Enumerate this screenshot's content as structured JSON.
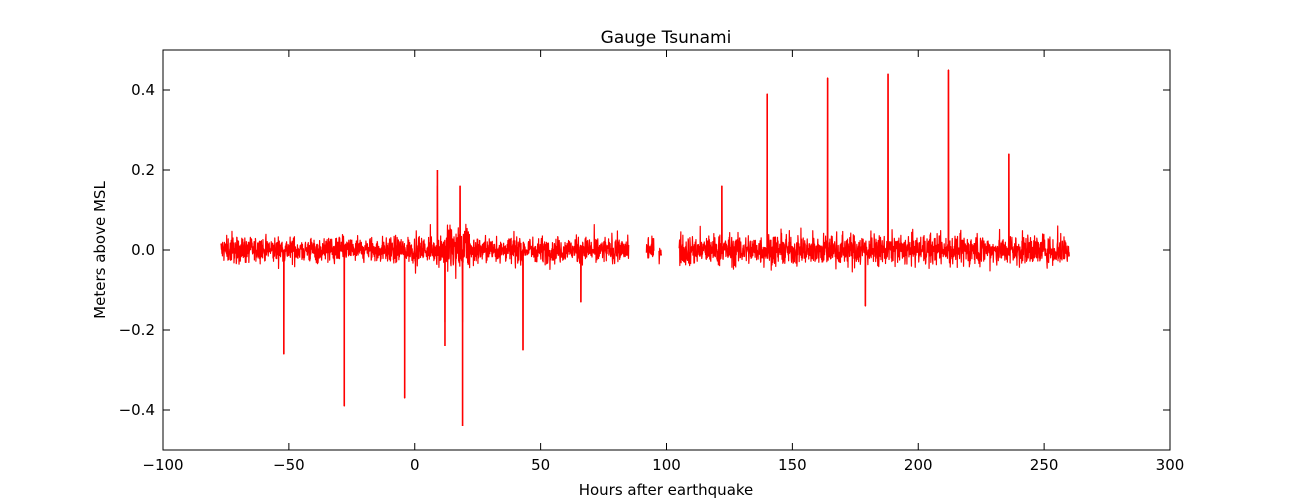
{
  "chart_data": {
    "type": "line",
    "title": "Gauge Tsunami",
    "xlabel": "Hours after earthquake",
    "ylabel": "Meters above MSL",
    "xlim": [
      -100,
      300
    ],
    "ylim": [
      -0.5,
      0.5
    ],
    "xticks": [
      -100,
      -50,
      0,
      50,
      100,
      150,
      200,
      250,
      300
    ],
    "xtick_labels": [
      "−100",
      "−50",
      "0",
      "50",
      "100",
      "150",
      "200",
      "250",
      "300"
    ],
    "yticks": [
      -0.4,
      -0.2,
      0.0,
      0.2,
      0.4
    ],
    "ytick_labels": [
      "−0.4",
      "−0.2",
      "0.0",
      "0.2",
      "0.4"
    ],
    "grid": false,
    "legend": "none",
    "series": [
      {
        "color": "#ff0000",
        "segments": [
          {
            "x_range": [
              -77,
              85
            ],
            "baseline_amplitude": 0.05
          },
          {
            "x_range": [
              92,
              95
            ],
            "baseline_amplitude": 0.05
          },
          {
            "x_range": [
              97,
              98
            ],
            "baseline_amplitude": 0.04
          },
          {
            "x_range": [
              105,
              260
            ],
            "baseline_amplitude": 0.06
          }
        ],
        "spikes": [
          {
            "x": -52,
            "y": -0.26
          },
          {
            "x": -28,
            "y": -0.39
          },
          {
            "x": -4,
            "y": -0.37
          },
          {
            "x": 9,
            "y": 0.2
          },
          {
            "x": 12,
            "y": -0.24
          },
          {
            "x": 18,
            "y": 0.16
          },
          {
            "x": 19,
            "y": -0.44
          },
          {
            "x": 43,
            "y": -0.25
          },
          {
            "x": 66,
            "y": -0.13
          },
          {
            "x": 122,
            "y": 0.16
          },
          {
            "x": 140,
            "y": 0.39
          },
          {
            "x": 164,
            "y": 0.43
          },
          {
            "x": 179,
            "y": -0.14
          },
          {
            "x": 188,
            "y": 0.44
          },
          {
            "x": 212,
            "y": 0.45
          },
          {
            "x": 236,
            "y": 0.24
          }
        ],
        "burst": {
          "x_range": [
            8,
            25
          ],
          "max_y": 0.16,
          "min_y": -0.18
        }
      }
    ]
  }
}
